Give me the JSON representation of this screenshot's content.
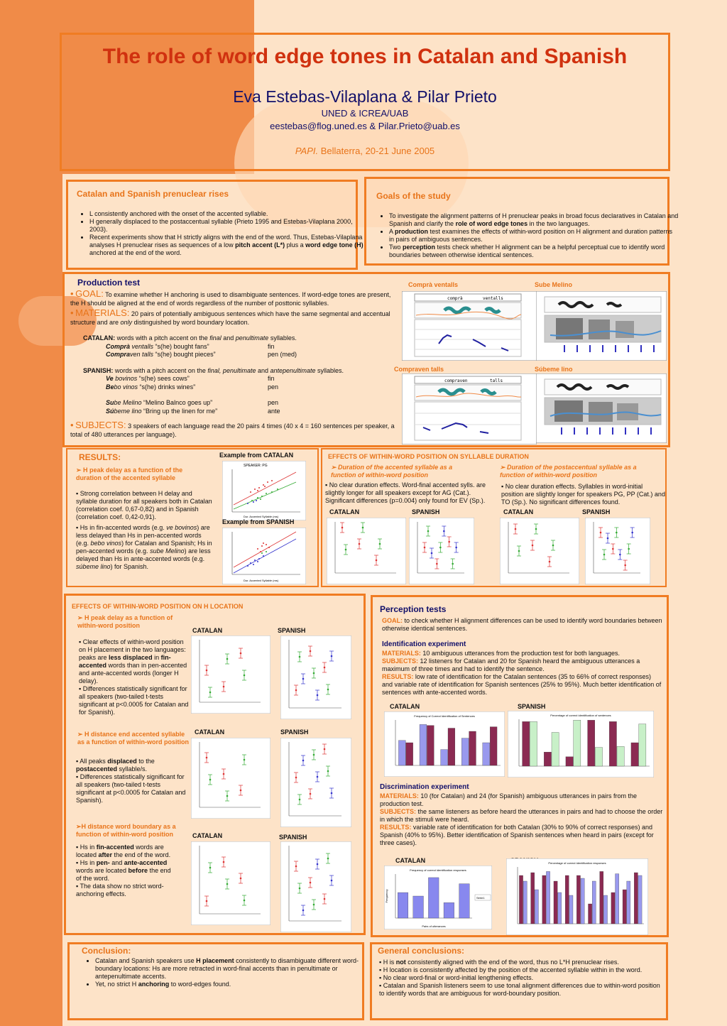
{
  "header": {
    "title": "The role of word edge tones in Catalan and Spanish",
    "authors": "Eva Estebas-Vilaplana & Pilar Prieto",
    "affiliation": "UNED & ICREA/UAB",
    "emails": "eestebas@flog.uned.es & Pilar.Prieto@uab.es",
    "conf_italic": "PAPI.",
    "conf_rest": "Bellaterra, 20-21 June 2005"
  },
  "prenuclear": {
    "heading": "Catalan and Spanish prenuclear rises",
    "item1": "L consistently anchored with the onset of the accented syllable.",
    "item2": "H generally displaced to the postaccentual syllable (Prieto 1995 and Estebas-Vilaplana 2000, 2003).",
    "item3_a": "Recent experiments show that H strictly aligns with the end of the word. Thus, Estebas-Vilaplana analyses H prenuclear rises as sequences of a low ",
    "item3_b": "pitch accent (L*)",
    "item3_c": " plus a ",
    "item3_d": "word edge tone (H)",
    "item3_e": " anchored at the end of the word."
  },
  "goals": {
    "heading": "Goals of the study",
    "g1_a": "To investigate the alignment patterns of H prenuclear peaks in broad focus declaratives in Catalan and Spanish and clarify the ",
    "g1_b": "role of word edge tones",
    "g1_c": " in the two languages.",
    "g2_a": "A ",
    "g2_b": "production",
    "g2_c": " test examines the effects of within-word position on H alignment and duration patterns in pairs of ambiguous sentences.",
    "g3_a": "Two ",
    "g3_b": "perception",
    "g3_c": " tests check whether H alignment can be a helpful perceptual cue to identify word boundaries between otherwise identical sentences."
  },
  "production": {
    "heading": "Production test",
    "goal_label": "GOAL:",
    "goal_text": " To examine whether H anchoring is used to disambiguate sentences. If word-edge tones are present, the H should be aligned at the end of words regardless of the number of posttonic syllables.",
    "materials_label": "MATERIALS:",
    "materials_text_a": " 20 pairs of potentially ambiguous sentences which have the same segmental and accentual structure and are ",
    "materials_only": "only",
    "materials_text_b": " distinguished by word boundary location.",
    "catalan_label": "CATALAN:",
    "catalan_text_a": " words with a pitch accent on the ",
    "catalan_final": "final",
    "catalan_and": " and ",
    "catalan_penult": "penultimate",
    "catalan_text_b": " syllables.",
    "cat_rows": [
      {
        "w1": "Comprà",
        "w2": " ventalls",
        "gloss": " “s(he) bought fans”",
        "type": "fin"
      },
      {
        "w1": "Compra",
        "w2": "ven talls",
        "gloss": " “s(he) bought pieces”",
        "type": "pen (med)"
      }
    ],
    "spanish_label": "SPANISH:",
    "spanish_text_a": " words with a pitch accent on the ",
    "spanish_final": "final, penultimate",
    "spanish_and": " and ",
    "spanish_ante": "antepenultimate",
    "spanish_text_b": " syllables.",
    "spa_rows": [
      {
        "w1": "Ve",
        "w2": " bovinos",
        "gloss": " “s(he) sees cows”",
        "type": "fin"
      },
      {
        "w1": "Be",
        "w2": "bo vinos",
        "gloss": " “s(he) drinks wines”",
        "type": "pen"
      },
      {
        "w1": "Su",
        "w2": "be Melino",
        "gloss": " “Melino Balnco goes up”",
        "type": "pen"
      },
      {
        "w1": "Sú",
        "w2": "beme lino",
        "gloss": " “Bring up the linen for me”",
        "type": "ante"
      }
    ],
    "subjects_label": "SUBJECTS:",
    "subjects_text": " 3 speakers of each language read the 20 pairs 4 times (40 x 4 = 160 sentences per speaker, a total of 480 utterances per language)."
  },
  "spectro": {
    "t1": "Comprà ventalls",
    "t2": "Sube Melino",
    "t3": "Compraven talls",
    "t4": "Súbeme lino",
    "w1a": "comprà",
    "w1b": "ventalls",
    "w3a": "compraven",
    "w3b": "talls"
  },
  "results": {
    "heading": "RESULTS:",
    "sub": "H peak delay as a function of the duration of the accented syllable",
    "p1": "▪ Strong correlation between H delay and syllable duration for all speakers both in Catalan (correlation coef. 0,67-0,82) and in Spanish (correlation coef. 0,42-0,91).",
    "p2_a": "▪ Hs in fin-accented  words (e.g. ",
    "p2_b": "ve bovinos",
    "p2_c": ") are less delayed than Hs in pen-accented words (e.g. ",
    "p2_d": "bebo vinos",
    "p2_e": ") for Catalan and Spanish; Hs in pen-accented words (e.g. ",
    "p2_f": "sube Melino",
    "p2_g": ") are less delayed than Hs in ante-accented words (e.g. ",
    "p2_h": "súbeme lino",
    "p2_i": ") for Spanish.",
    "ex_cat": "Example from CATALAN",
    "ex_spa": "Example from SPANISH",
    "speaker_pg": "SPEAKER: PG",
    "axis_x": "Dur. Accented Syllable (ms)"
  },
  "duration": {
    "heading": "EFFECTS OF WITHIN-WORD POSITION ON SYLLABLE DURATION",
    "sub1": "Duration of the accented syllable as a function of within-word position",
    "sub2": "Duration of the postaccentual syllable as a function of within-word position",
    "p1": "▪ No clear duration effects. Word-final accented sylls. are slightly longer for alll speakers except for AG (Cat.). Significant differences (p=0.004) only found for EV (Sp.).",
    "p2": "▪ No clear duration effects. Syllables in word-initial position are slightly longer for speakers PG, PP (Cat.) and TO (Sp.). No significant differences found.",
    "catalan": "CATALAN",
    "spanish": "SPANISH"
  },
  "hloc": {
    "heading": "EFFECTS OF WITHIN-WORD POSITION ON H LOCATION",
    "sub1": "H peak delay as a function of within-word position",
    "p1_a": "▪ Clear effects of within-word position on H placement in the two languages: peaks are ",
    "p1_b": "less displaced",
    "p1_c": " in ",
    "p1_d": "fin-accented",
    "p1_e": " words than in pen-accented and ante-accented words (longer H delay).",
    "p1_f": "▪ Differences statistically significant for all speakers (two-tailed t-tests significant at p<0.0005 for Catalan and for Spanish).",
    "sub2": "H distance end accented syllable as a function of within-word position",
    "p2_a": "▪ All peaks ",
    "p2_b": "displaced",
    "p2_c": " to the ",
    "p2_d": "postaccented",
    "p2_e": " syllable/s.",
    "p2_f": "▪ Differences statistically significant for all speakers (two-tailed t-tests significant at p<0.0005 for Catalan and Spanish).",
    "sub3": "H distance word boundary as a function of within-word position",
    "p3_a": "▪ Hs in ",
    "p3_b": "fin-accented",
    "p3_c": " words are located ",
    "p3_d": "after",
    "p3_e": " the end of the word.",
    "p3_f": "▪ Hs in ",
    "p3_g": "pen-",
    "p3_h": " and ",
    "p3_i": "ante-accented",
    "p3_j": " words are located ",
    "p3_k": "before",
    "p3_l": " the end of the word.",
    "p3_m": "▪ The data show no strict word-anchoring effects.",
    "catalan": "CATALAN",
    "spanish": "SPANISH",
    "speaker": "SPEAKER"
  },
  "perception": {
    "heading": "Perception tests",
    "goal_label": "GOAL:",
    "goal_text": " to check whether H alignment differences can be used to identify word boundaries between otherwise identical sentences.",
    "id_heading": "Identification experiment",
    "materials_label": "MATERIALS:",
    "id_materials": " 10 ambiguous utterances from the production test for both languages.",
    "subjects_label": "SUBJECTS:",
    "id_subjects": " 12 listeners for Catalan and 20 for Spanish heard the ambiguous utterances a maximum of three times and had to identify the sentence.",
    "results_label": "RESULTS:",
    "id_results": " low rate of identification for the Catalan sentences (35 to 66% of correct responses) and variable rate of identification for Spanish sentences (25% to 95%). Much better identification of sentences with ante-accented words.",
    "disc_heading": "Discrimination experiment",
    "disc_materials": " 10 (for Catalan) and 24 (for Spanish) ambiguous utterances in pairs from the production test.",
    "disc_subjects": " the same listeners as before heard the utterances in pairs and had to choose the order in which the stimuli were heard.",
    "disc_results": " variable rate of identification for both Catalan (30% to 90% of correct responses) and Spanish (40% to 95%). Better identification of Spanish sentences when heard in pairs (except for three cases).",
    "catalan": "CATALAN",
    "spanish": "SPANISH",
    "id_cat_title": "Frequency of Correct Identification of Sentences",
    "id_spa_title": "Percentage of correct identification of sentences",
    "disc_cat_title": "Frequency of correct identification responses",
    "disc_spa_title": "Percentage of correct identification responses",
    "disc_cat_xlabel": "Pairs of utterances",
    "disc_cat_ylabel": "Frequency",
    "disc_cat_legend": "Sèrie1"
  },
  "conclusion": {
    "heading": "Conclusion:",
    "c1_a": "Catalan and Spanish speakers use ",
    "c1_b": "H placement",
    "c1_c": " consistently to disambiguate different word-boundary locations: Hs are more retracted in word-final accents than in penultimate or antepenultimate accents.",
    "c2_a": "Yet, no strict H ",
    "c2_b": "anchoring",
    "c2_c": " to word-edges found."
  },
  "general": {
    "heading": "General conclusions:",
    "g1_a": "▪ H is ",
    "g1_b": "not",
    "g1_c": " consistently aligned with the end of the word, thus no L*H prenuclear rises.",
    "g2": "▪ H location is consistently affected by the position of the accented syllable within in the word.",
    "g3": "▪ No clear word-final or word-initial lengthening effects.",
    "g4": "▪ Catalan and Spanish listeners seem to use tonal alignment differences due to within-word position to identify words that are ambiguous for word-boundary position."
  },
  "colors": {
    "accent": "#f07c22",
    "title_red": "#d0310f",
    "navy": "#12106a",
    "left_band": "#f08b48",
    "background": "#fde3c8"
  }
}
